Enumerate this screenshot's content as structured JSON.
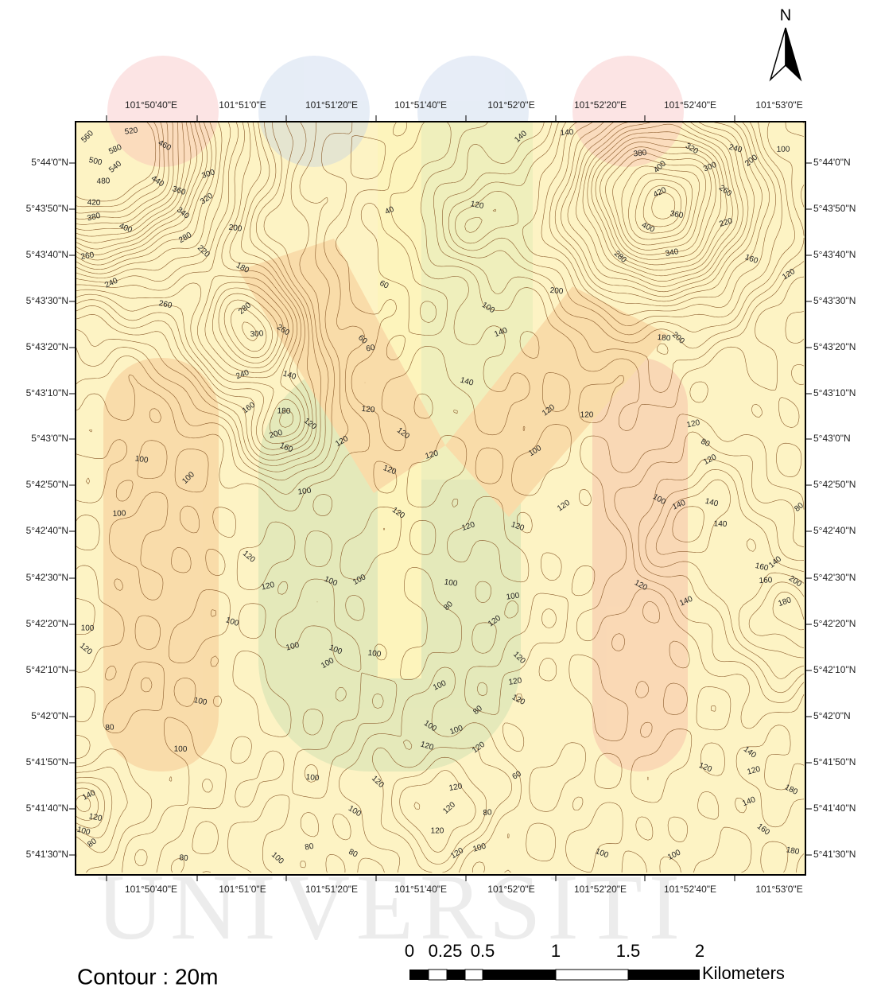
{
  "north": "N",
  "graticule": {
    "top": [
      "101°50'40\"E",
      "101°51'0\"E",
      "101°51'20\"E",
      "101°51'40\"E",
      "101°52'0\"E",
      "101°52'20\"E",
      "101°52'40\"E",
      "101°53'0\"E"
    ],
    "bottom": [
      "101°50'40\"E",
      "101°51'0\"E",
      "101°51'20\"E",
      "101°51'40\"E",
      "101°52'0\"E",
      "101°52'20\"E",
      "101°52'40\"E",
      "101°53'0\"E"
    ],
    "left": [
      "5°44'0\"N",
      "5°43'50\"N",
      "5°43'40\"N",
      "5°43'30\"N",
      "5°43'20\"N",
      "5°43'10\"N",
      "5°43'0\"N",
      "5°42'50\"N",
      "5°42'40\"N",
      "5°42'30\"N",
      "5°42'20\"N",
      "5°42'10\"N",
      "5°42'0\"N",
      "5°41'50\"N",
      "5°41'40\"N",
      "5°41'30\"N"
    ],
    "right": [
      "5°44'0\"N",
      "5°43'50\"N",
      "5°43'40\"N",
      "5°43'30\"N",
      "5°43'20\"N",
      "5°43'10\"N",
      "5°43'0\"N",
      "5°42'50\"N",
      "5°42'40\"N",
      "5°42'30\"N",
      "5°42'20\"N",
      "5°42'10\"N",
      "5°42'0\"N",
      "5°41'50\"N",
      "5°41'40\"N",
      "5°41'30\"N"
    ]
  },
  "contour_labels": [
    "560",
    "520",
    "460",
    "580",
    "500",
    "540",
    "480",
    "440",
    "300",
    "360",
    "320",
    "420",
    "340",
    "380",
    "400",
    "280",
    "200",
    "220",
    "260",
    "180",
    "240",
    "260",
    "280",
    "300",
    "260",
    "240",
    "140",
    "160",
    "180",
    "120",
    "200",
    "160",
    "120",
    "120",
    "60",
    "60",
    "60",
    "40",
    "120",
    "140",
    "140",
    "100",
    "140",
    "140",
    "120",
    "120",
    "120",
    "120",
    "120",
    "100",
    "200",
    "280",
    "340",
    "400",
    "420",
    "360",
    "400",
    "380",
    "320",
    "300",
    "240",
    "200",
    "100",
    "260",
    "220",
    "160",
    "120",
    "180",
    "200",
    "120",
    "80",
    "120",
    "100",
    "100",
    "100",
    "100",
    "140",
    "140",
    "80",
    "100",
    "120",
    "120",
    "120",
    "120",
    "140",
    "120",
    "120",
    "100",
    "100",
    "100",
    "80",
    "100",
    "120",
    "140",
    "160",
    "140",
    "160",
    "200",
    "180",
    "100",
    "120",
    "100",
    "120",
    "100",
    "100",
    "100",
    "100",
    "120",
    "120",
    "120",
    "100",
    "100",
    "80",
    "80",
    "100",
    "100",
    "120",
    "120",
    "100",
    "140",
    "120",
    "120",
    "60",
    "100",
    "120",
    "120",
    "180",
    "140",
    "120",
    "120",
    "80",
    "100",
    "140",
    "100",
    "80",
    "120",
    "160",
    "100",
    "100",
    "120",
    "80",
    "100",
    "80",
    "80",
    "100",
    "180"
  ],
  "contour_note": "Contour : 20m",
  "scale_bar": {
    "labels": [
      "0",
      "0.25",
      "0.5",
      "1",
      "1.5",
      "2"
    ],
    "unit": "Kilometers"
  },
  "watermark": "UNIVERSITI"
}
